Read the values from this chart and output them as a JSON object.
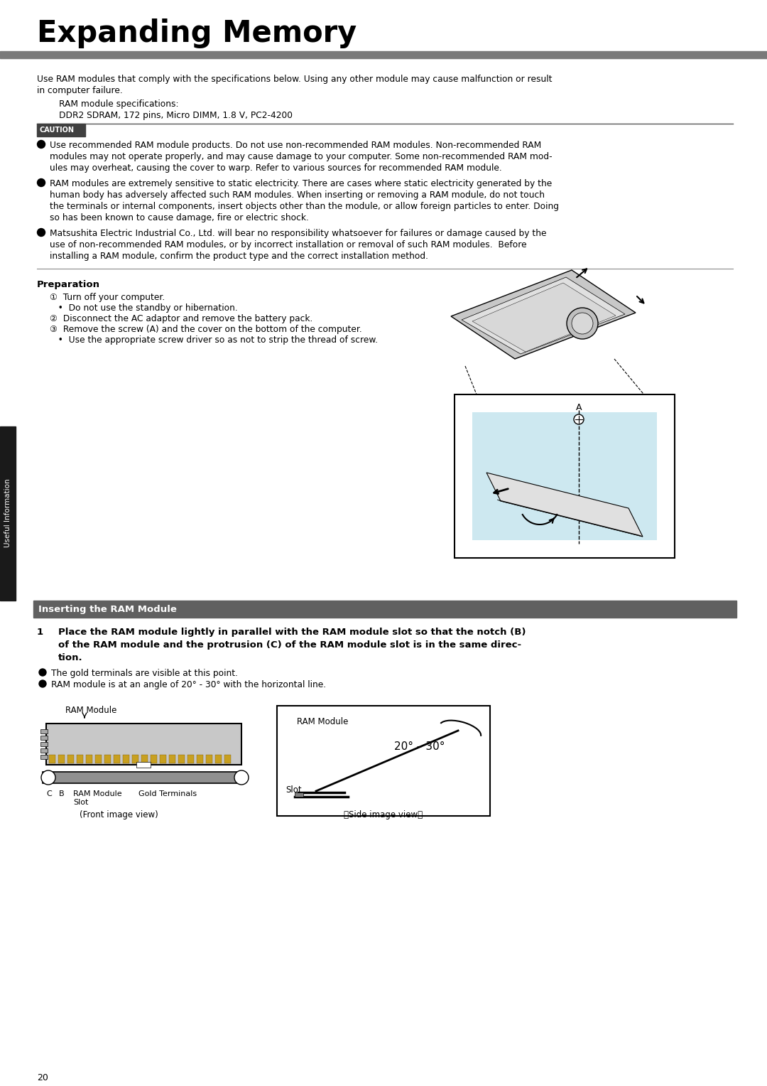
{
  "title": "Expanding Memory",
  "bg_color": "#ffffff",
  "page_number": "20",
  "intro_line1": "Use RAM modules that comply with the specifications below. Using any other module may cause malfunction or result",
  "intro_line2": "in computer failure.",
  "spec_label": "        RAM module specifications:",
  "spec_value": "        DDR2 SDRAM, 172 pins, Micro DIMM, 1.8 V, PC2-4200",
  "caution_label": "CAUTION",
  "caution_bullet1_lines": [
    "Use recommended RAM module products. Do not use non-recommended RAM modules. Non-recommended RAM",
    "modules may not operate properly, and may cause damage to your computer. Some non-recommended RAM mod-",
    "ules may overheat, causing the cover to warp. Refer to various sources for recommended RAM module."
  ],
  "caution_bullet2_lines": [
    "RAM modules are extremely sensitive to static electricity. There are cases where static electricity generated by the",
    "human body has adversely affected such RAM modules. When inserting or removing a RAM module, do not touch",
    "the terminals or internal components, insert objects other than the module, or allow foreign particles to enter. Doing",
    "so has been known to cause damage, fire or electric shock."
  ],
  "caution_bullet3_lines": [
    "Matsushita Electric Industrial Co., Ltd. will bear no responsibility whatsoever for failures or damage caused by the",
    "use of non-recommended RAM modules, or by incorrect installation or removal of such RAM modules.  Before",
    "installing a RAM module, confirm the product type and the correct installation method."
  ],
  "prep_title": "Preparation",
  "prep_step1": "①  Turn off your computer.",
  "prep_step1_sub": "   •  Do not use the standby or hibernation.",
  "prep_step2": "②  Disconnect the AC adaptor and remove the battery pack.",
  "prep_step3": "③  Remove the screw (A) and the cover on the bottom of the computer.",
  "prep_step3_sub": "   •  Use the appropriate screw driver so as not to strip the thread of screw.",
  "sidebar_text": "Useful Information",
  "inserting_title": "Inserting the RAM Module",
  "step1_num": "1",
  "step1_line1": "Place the RAM module lightly in parallel with the RAM module slot so that the notch (B)",
  "step1_line2": "of the RAM module and the protrusion (C) of the RAM module slot is in the same direc-",
  "step1_line3": "tion.",
  "bullet_a": "The gold terminals are visible at this point.",
  "bullet_b": "RAM module is at an angle of 20° - 30° with the horizontal line.",
  "front_ram_label": "RAM Module",
  "front_caption": "(Front image view)",
  "front_c_label": "C",
  "front_b_label": "B",
  "front_slot_label": "RAM Module\nSlot",
  "front_gold_label": "Gold Terminals",
  "side_ram_label": "RAM Module",
  "side_angle_label": "20° – 30°",
  "side_slot_label": "Slot",
  "side_caption": "（Side image view）"
}
